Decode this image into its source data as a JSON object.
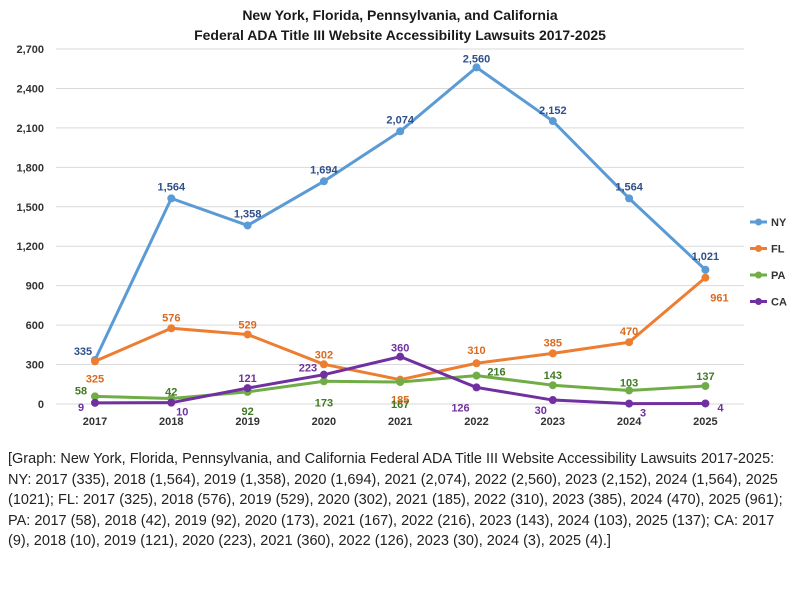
{
  "chart_data": {
    "type": "line",
    "title": [
      "New York, Florida, Pennsylvania, and California",
      "Federal ADA Title III Website Accessibility Lawsuits 2017-2025"
    ],
    "categories": [
      "2017",
      "2018",
      "2019",
      "2020",
      "2021",
      "2022",
      "2023",
      "2024",
      "2025"
    ],
    "ylim": [
      0,
      2700
    ],
    "yticks": [
      0,
      300,
      600,
      900,
      1200,
      1500,
      1800,
      2100,
      2400,
      2700
    ],
    "ytick_labels": [
      "0",
      "300",
      "600",
      "900",
      "1,200",
      "1,500",
      "1,800",
      "2,100",
      "2,400",
      "2,700"
    ],
    "legend_position": "right",
    "grid": true,
    "series": [
      {
        "name": "NY",
        "color": "#5b9bd5",
        "values": [
          335,
          1564,
          1358,
          1694,
          2074,
          2560,
          2152,
          1564,
          1021
        ],
        "labels": [
          "335",
          "1,564",
          "1,358",
          "1,694",
          "2,074",
          "2,560",
          "2,152",
          "1,564",
          "1,021"
        ],
        "label_color": "#2f4f8a"
      },
      {
        "name": "FL",
        "color": "#ed7d31",
        "values": [
          325,
          576,
          529,
          302,
          185,
          310,
          385,
          470,
          961
        ],
        "labels": [
          "325",
          "576",
          "529",
          "302",
          "185",
          "310",
          "385",
          "470",
          "961"
        ],
        "label_color": "#d96a1f"
      },
      {
        "name": "PA",
        "color": "#70ad47",
        "values": [
          58,
          42,
          92,
          173,
          167,
          216,
          143,
          103,
          137
        ],
        "labels": [
          "58",
          "42",
          "92",
          "173",
          "167",
          "216",
          "143",
          "103",
          "137"
        ],
        "label_color": "#3f7a24"
      },
      {
        "name": "CA",
        "color": "#7030a0",
        "values": [
          9,
          10,
          121,
          223,
          360,
          126,
          30,
          3,
          4
        ],
        "labels": [
          "9",
          "10",
          "121",
          "223",
          "360",
          "126",
          "30",
          "3",
          "4"
        ],
        "label_color": "#7030a0"
      }
    ]
  },
  "caption": "[Graph: New York, Florida, Pennsylvania, and California Federal ADA Title III Website Accessibility Lawsuits 2017-2025: NY: 2017 (335), 2018 (1,564), 2019 (1,358), 2020 (1,694), 2021 (2,074), 2022 (2,560), 2023 (2,152), 2024 (1,564), 2025 (1021); FL: 2017 (325), 2018 (576), 2019 (529), 2020 (302), 2021 (185), 2022 (310), 2023 (385), 2024 (470), 2025 (961); PA: 2017 (58), 2018 (42), 2019 (92), 2020 (173), 2021 (167), 2022 (216), 2023 (143), 2024 (103), 2025 (137); CA: 2017 (9), 2018 (10), 2019 (121), 2020 (223), 2021 (360), 2022 (126), 2023 (30), 2024 (3), 2025 (4).]"
}
